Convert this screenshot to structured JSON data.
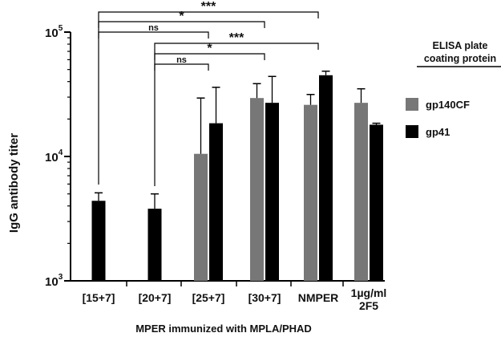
{
  "chart_data": {
    "type": "bar",
    "scale": "log",
    "ylim": [
      1000,
      100000
    ],
    "ylabel": "IgG antibody titer",
    "xlabel": "MPER immunized with MPLA/PHAD",
    "y_ticks": [
      {
        "value": 1000,
        "base": "10",
        "exp": "3"
      },
      {
        "value": 10000,
        "base": "10",
        "exp": "4"
      },
      {
        "value": 100000,
        "base": "10",
        "exp": "5"
      }
    ],
    "categories": [
      "[15+7]",
      "[20+7]",
      "[25+7]",
      "[30+7]",
      "NMPER",
      "1µg/ml 2F5"
    ],
    "category_lines": [
      [
        "[15+7]"
      ],
      [
        "[20+7]"
      ],
      [
        "[25+7]"
      ],
      [
        "[30+7]"
      ],
      [
        "NMPER"
      ],
      [
        "1µg/ml",
        "2F5"
      ]
    ],
    "legend": {
      "title_lines": [
        "ELISA plate",
        "coating protein"
      ],
      "placement": "right"
    },
    "series": [
      {
        "name": "gp140CF",
        "color": "#777777",
        "values": [
          null,
          null,
          10500,
          29500,
          26000,
          27000
        ],
        "err": [
          null,
          null,
          29500,
          38500,
          31500,
          35000
        ]
      },
      {
        "name": "gp41",
        "color": "#000000",
        "values": [
          4400,
          3800,
          18500,
          27000,
          45000,
          18000
        ],
        "err": [
          5100,
          5000,
          36000,
          44000,
          48500,
          18500
        ]
      }
    ],
    "significance": [
      {
        "label": "***",
        "from": 0,
        "to": 4,
        "level": 1
      },
      {
        "label": "*",
        "from": 0,
        "to": 3,
        "level": 2
      },
      {
        "label": "ns",
        "from": 0,
        "to": 2,
        "level": 3
      },
      {
        "label": "***",
        "from": 1,
        "to": 4,
        "level": 4
      },
      {
        "label": "*",
        "from": 1,
        "to": 3,
        "level": 5
      },
      {
        "label": "ns",
        "from": 1,
        "to": 2,
        "level": 6
      }
    ],
    "grid": false
  }
}
